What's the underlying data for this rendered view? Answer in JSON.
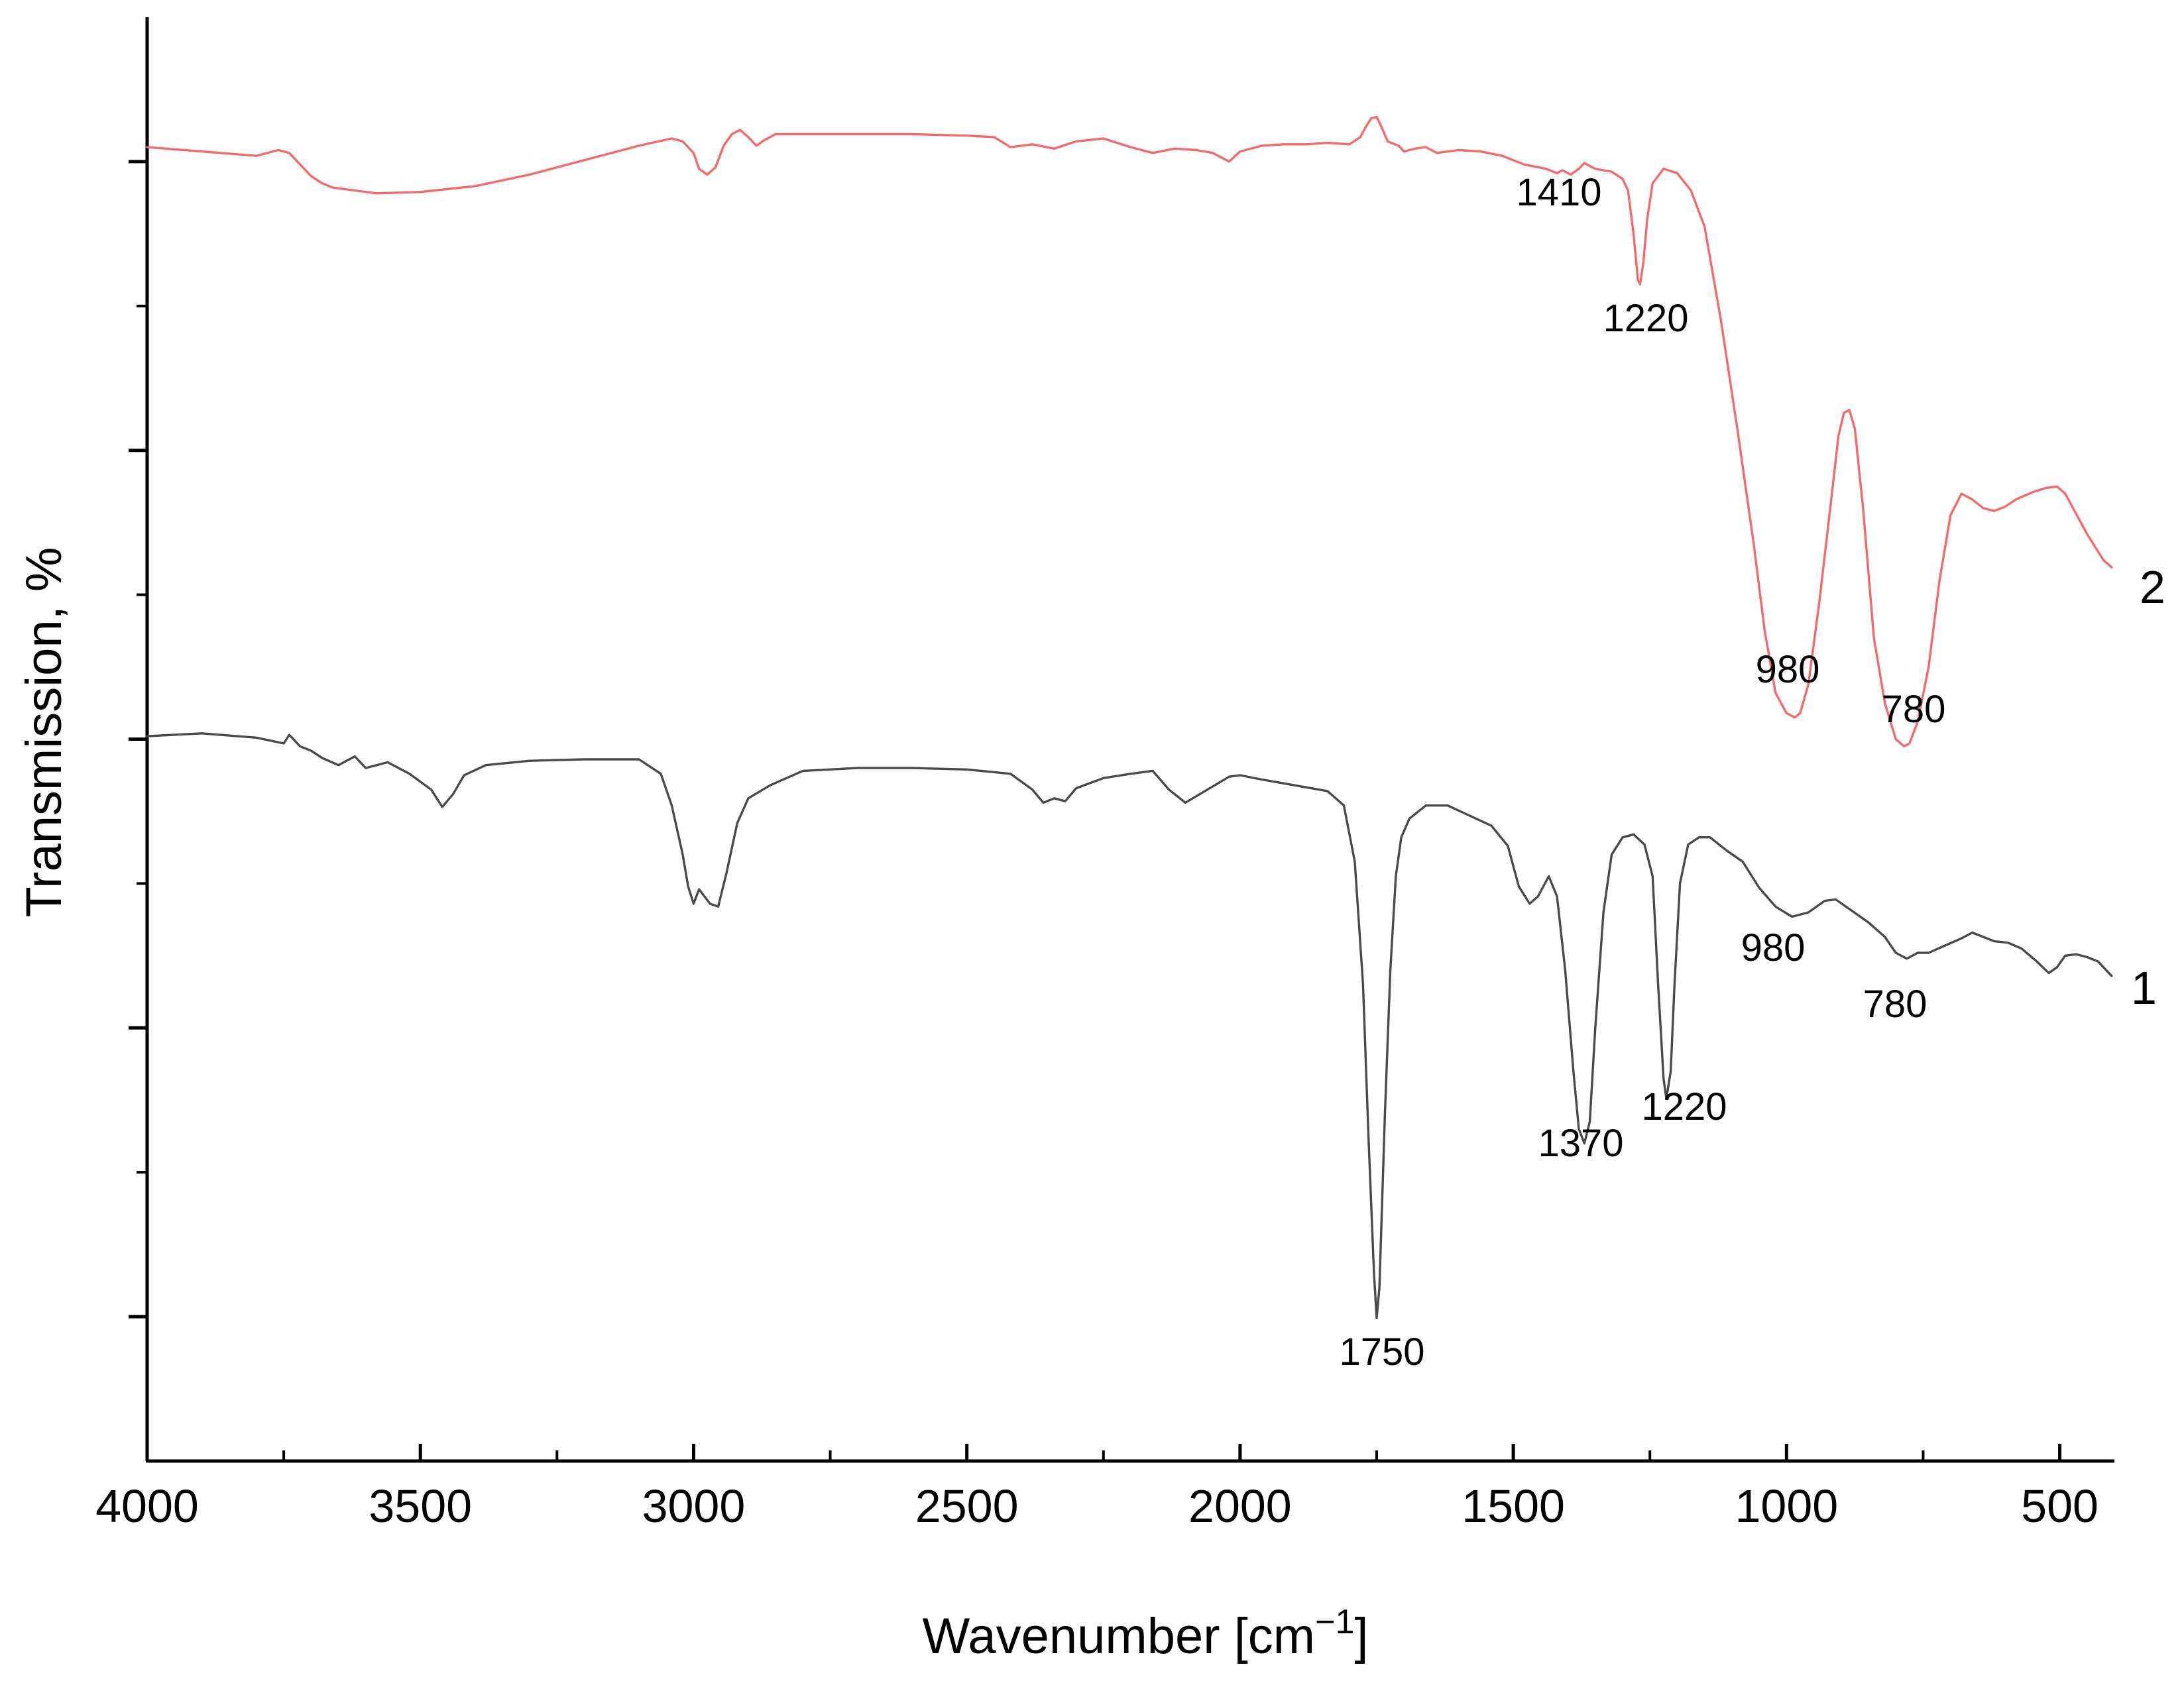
{
  "chart_data": {
    "type": "line",
    "title": "",
    "xlabel": "Wavenumber [cm",
    "xlabel_sup": "−1",
    "xlabel_close": "]",
    "ylabel": "Transmission, %",
    "xlim": [
      4000,
      400
    ],
    "x_reversed": true,
    "y_tick_labels_shown": false,
    "ylim": [
      0,
      100
    ],
    "grid": false,
    "x_ticks": [
      4000,
      3500,
      3000,
      2500,
      2000,
      1500,
      1000,
      500
    ],
    "x_tick_labels": [
      "4000",
      "3500",
      "3000",
      "2500",
      "2000",
      "1500",
      "1000",
      "500"
    ],
    "y_major_ticks": [
      10,
      30,
      50,
      70,
      90
    ],
    "y_minor_ticks": [
      20,
      40,
      60,
      80
    ],
    "series": [
      {
        "name": "1",
        "color": "#4a4a4a",
        "points": [
          [
            4000,
            50.2
          ],
          [
            3900,
            50.4
          ],
          [
            3800,
            50.1
          ],
          [
            3750,
            49.7
          ],
          [
            3740,
            50.3
          ],
          [
            3720,
            49.5
          ],
          [
            3700,
            49.2
          ],
          [
            3680,
            48.7
          ],
          [
            3650,
            48.2
          ],
          [
            3620,
            48.8
          ],
          [
            3600,
            48.0
          ],
          [
            3560,
            48.4
          ],
          [
            3520,
            47.6
          ],
          [
            3480,
            46.5
          ],
          [
            3460,
            45.3
          ],
          [
            3440,
            46.2
          ],
          [
            3420,
            47.5
          ],
          [
            3380,
            48.2
          ],
          [
            3300,
            48.5
          ],
          [
            3200,
            48.6
          ],
          [
            3100,
            48.6
          ],
          [
            3060,
            47.6
          ],
          [
            3040,
            45.4
          ],
          [
            3020,
            42.0
          ],
          [
            3010,
            39.8
          ],
          [
            3000,
            38.6
          ],
          [
            2990,
            39.6
          ],
          [
            2980,
            39.1
          ],
          [
            2970,
            38.6
          ],
          [
            2955,
            38.4
          ],
          [
            2940,
            40.7
          ],
          [
            2920,
            44.2
          ],
          [
            2900,
            45.9
          ],
          [
            2860,
            46.8
          ],
          [
            2800,
            47.8
          ],
          [
            2700,
            48.0
          ],
          [
            2600,
            48.0
          ],
          [
            2500,
            47.9
          ],
          [
            2420,
            47.6
          ],
          [
            2380,
            46.5
          ],
          [
            2360,
            45.6
          ],
          [
            2340,
            45.9
          ],
          [
            2320,
            45.7
          ],
          [
            2300,
            46.6
          ],
          [
            2250,
            47.3
          ],
          [
            2200,
            47.6
          ],
          [
            2160,
            47.8
          ],
          [
            2130,
            46.5
          ],
          [
            2100,
            45.6
          ],
          [
            2060,
            46.5
          ],
          [
            2020,
            47.4
          ],
          [
            2000,
            47.5
          ],
          [
            1960,
            47.2
          ],
          [
            1900,
            46.8
          ],
          [
            1840,
            46.4
          ],
          [
            1810,
            45.4
          ],
          [
            1790,
            41.5
          ],
          [
            1775,
            33.0
          ],
          [
            1765,
            22.5
          ],
          [
            1755,
            13.0
          ],
          [
            1750,
            9.9
          ],
          [
            1745,
            12.0
          ],
          [
            1735,
            24.0
          ],
          [
            1725,
            34.0
          ],
          [
            1715,
            40.5
          ],
          [
            1705,
            43.2
          ],
          [
            1690,
            44.5
          ],
          [
            1660,
            45.4
          ],
          [
            1620,
            45.4
          ],
          [
            1580,
            44.7
          ],
          [
            1540,
            44.0
          ],
          [
            1510,
            42.6
          ],
          [
            1490,
            39.8
          ],
          [
            1470,
            38.6
          ],
          [
            1455,
            39.1
          ],
          [
            1435,
            40.5
          ],
          [
            1420,
            39.1
          ],
          [
            1405,
            34.0
          ],
          [
            1390,
            27.0
          ],
          [
            1380,
            23.0
          ],
          [
            1370,
            22.0
          ],
          [
            1360,
            23.5
          ],
          [
            1350,
            30.0
          ],
          [
            1335,
            38.0
          ],
          [
            1320,
            42.0
          ],
          [
            1300,
            43.2
          ],
          [
            1280,
            43.4
          ],
          [
            1260,
            42.7
          ],
          [
            1245,
            40.5
          ],
          [
            1235,
            33.0
          ],
          [
            1225,
            26.5
          ],
          [
            1220,
            25.1
          ],
          [
            1212,
            27.0
          ],
          [
            1205,
            33.0
          ],
          [
            1195,
            40.0
          ],
          [
            1180,
            42.7
          ],
          [
            1160,
            43.2
          ],
          [
            1140,
            43.2
          ],
          [
            1110,
            42.3
          ],
          [
            1080,
            41.5
          ],
          [
            1050,
            39.7
          ],
          [
            1020,
            38.4
          ],
          [
            990,
            37.7
          ],
          [
            960,
            38.0
          ],
          [
            930,
            38.8
          ],
          [
            910,
            38.9
          ],
          [
            880,
            38.1
          ],
          [
            850,
            37.3
          ],
          [
            820,
            36.3
          ],
          [
            800,
            35.2
          ],
          [
            780,
            34.8
          ],
          [
            760,
            35.2
          ],
          [
            740,
            35.2
          ],
          [
            710,
            35.7
          ],
          [
            680,
            36.2
          ],
          [
            660,
            36.6
          ],
          [
            640,
            36.3
          ],
          [
            620,
            36.0
          ],
          [
            595,
            35.9
          ],
          [
            570,
            35.5
          ],
          [
            545,
            34.7
          ],
          [
            520,
            33.8
          ],
          [
            505,
            34.2
          ],
          [
            490,
            35.0
          ],
          [
            470,
            35.1
          ],
          [
            450,
            34.9
          ],
          [
            430,
            34.6
          ],
          [
            405,
            33.6
          ]
        ]
      },
      {
        "name": "2",
        "color": "#f46a6a",
        "points": [
          [
            4000,
            91.0
          ],
          [
            3900,
            90.7
          ],
          [
            3800,
            90.4
          ],
          [
            3760,
            90.8
          ],
          [
            3740,
            90.6
          ],
          [
            3720,
            89.8
          ],
          [
            3700,
            89.0
          ],
          [
            3680,
            88.5
          ],
          [
            3660,
            88.2
          ],
          [
            3620,
            88.0
          ],
          [
            3580,
            87.8
          ],
          [
            3500,
            87.9
          ],
          [
            3400,
            88.3
          ],
          [
            3300,
            89.1
          ],
          [
            3200,
            90.1
          ],
          [
            3100,
            91.1
          ],
          [
            3040,
            91.6
          ],
          [
            3020,
            91.4
          ],
          [
            3000,
            90.6
          ],
          [
            2990,
            89.5
          ],
          [
            2975,
            89.1
          ],
          [
            2960,
            89.6
          ],
          [
            2945,
            91.1
          ],
          [
            2930,
            91.9
          ],
          [
            2915,
            92.2
          ],
          [
            2900,
            91.7
          ],
          [
            2885,
            91.1
          ],
          [
            2870,
            91.5
          ],
          [
            2850,
            91.9
          ],
          [
            2800,
            91.9
          ],
          [
            2700,
            91.9
          ],
          [
            2600,
            91.9
          ],
          [
            2500,
            91.8
          ],
          [
            2450,
            91.7
          ],
          [
            2420,
            91.0
          ],
          [
            2380,
            91.2
          ],
          [
            2340,
            90.9
          ],
          [
            2300,
            91.4
          ],
          [
            2250,
            91.6
          ],
          [
            2200,
            91.0
          ],
          [
            2160,
            90.6
          ],
          [
            2120,
            90.9
          ],
          [
            2080,
            90.8
          ],
          [
            2050,
            90.6
          ],
          [
            2020,
            90.0
          ],
          [
            2000,
            90.7
          ],
          [
            1960,
            91.1
          ],
          [
            1920,
            91.2
          ],
          [
            1880,
            91.2
          ],
          [
            1840,
            91.3
          ],
          [
            1800,
            91.2
          ],
          [
            1780,
            91.7
          ],
          [
            1770,
            92.4
          ],
          [
            1760,
            93.0
          ],
          [
            1750,
            93.1
          ],
          [
            1740,
            92.3
          ],
          [
            1730,
            91.4
          ],
          [
            1710,
            91.1
          ],
          [
            1700,
            90.7
          ],
          [
            1680,
            90.9
          ],
          [
            1660,
            91.0
          ],
          [
            1640,
            90.6
          ],
          [
            1600,
            90.8
          ],
          [
            1560,
            90.7
          ],
          [
            1520,
            90.4
          ],
          [
            1480,
            89.8
          ],
          [
            1440,
            89.5
          ],
          [
            1420,
            89.2
          ],
          [
            1410,
            89.4
          ],
          [
            1395,
            89.1
          ],
          [
            1380,
            89.5
          ],
          [
            1370,
            89.9
          ],
          [
            1350,
            89.5
          ],
          [
            1320,
            89.3
          ],
          [
            1300,
            88.8
          ],
          [
            1290,
            88.0
          ],
          [
            1280,
            85.0
          ],
          [
            1272,
            81.8
          ],
          [
            1268,
            81.5
          ],
          [
            1262,
            83.0
          ],
          [
            1255,
            86.0
          ],
          [
            1245,
            88.5
          ],
          [
            1225,
            89.5
          ],
          [
            1200,
            89.2
          ],
          [
            1175,
            88.0
          ],
          [
            1150,
            85.5
          ],
          [
            1120,
            79.0
          ],
          [
            1090,
            71.5
          ],
          [
            1060,
            63.5
          ],
          [
            1040,
            57.5
          ],
          [
            1020,
            53.2
          ],
          [
            1000,
            51.8
          ],
          [
            985,
            51.5
          ],
          [
            975,
            51.8
          ],
          [
            960,
            53.8
          ],
          [
            940,
            59.5
          ],
          [
            920,
            66.0
          ],
          [
            905,
            71.0
          ],
          [
            895,
            72.6
          ],
          [
            885,
            72.8
          ],
          [
            875,
            71.5
          ],
          [
            860,
            66.0
          ],
          [
            840,
            57.0
          ],
          [
            820,
            52.5
          ],
          [
            800,
            50.0
          ],
          [
            785,
            49.5
          ],
          [
            775,
            49.7
          ],
          [
            760,
            51.2
          ],
          [
            740,
            55.0
          ],
          [
            720,
            61.0
          ],
          [
            700,
            65.5
          ],
          [
            680,
            67.0
          ],
          [
            660,
            66.6
          ],
          [
            640,
            66.0
          ],
          [
            620,
            65.8
          ],
          [
            600,
            66.1
          ],
          [
            580,
            66.6
          ],
          [
            550,
            67.1
          ],
          [
            525,
            67.4
          ],
          [
            505,
            67.5
          ],
          [
            490,
            67.0
          ],
          [
            470,
            65.6
          ],
          [
            450,
            64.2
          ],
          [
            420,
            62.4
          ],
          [
            405,
            61.9
          ]
        ]
      }
    ],
    "annotations": [
      {
        "text": "1410",
        "series": "2",
        "x": 1410
      },
      {
        "text": "1220",
        "series": "2",
        "x": 1220
      },
      {
        "text": "980",
        "series": "2",
        "x": 980
      },
      {
        "text": "780",
        "series": "2",
        "x": 780
      },
      {
        "text": "980",
        "series": "1",
        "x": 980
      },
      {
        "text": "780",
        "series": "1",
        "x": 780
      },
      {
        "text": "1750",
        "series": "1",
        "x": 1750
      },
      {
        "text": "1370",
        "series": "1",
        "x": 1370
      },
      {
        "text": "1220",
        "series": "1",
        "x": 1220
      }
    ]
  }
}
